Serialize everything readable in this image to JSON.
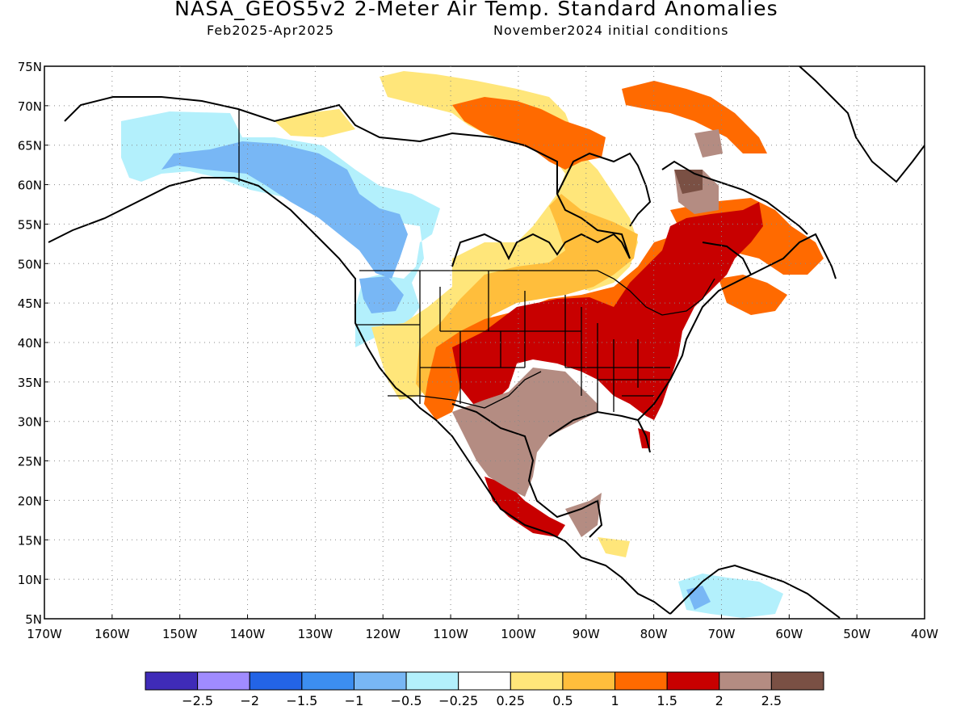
{
  "title": "NASA_GEOS5v2 2-Meter Air Temp. Standard Anomalies",
  "subtitle_left": "Feb2025-Apr2025",
  "subtitle_right": "November2024 initial conditions",
  "map": {
    "lon_range": [
      -170,
      -40
    ],
    "lat_range": [
      5,
      75
    ],
    "lat_ticks": [
      "75N",
      "70N",
      "65N",
      "60N",
      "55N",
      "50N",
      "45N",
      "40N",
      "35N",
      "30N",
      "25N",
      "20N",
      "15N",
      "10N",
      "5N"
    ],
    "lon_ticks": [
      "170W",
      "160W",
      "150W",
      "140W",
      "130W",
      "120W",
      "110W",
      "100W",
      "90W",
      "80W",
      "70W",
      "60W",
      "50W",
      "40W"
    ],
    "gridlines": "dotted"
  },
  "colorbar": {
    "colors": [
      "#3f2bb8",
      "#a08bff",
      "#2364e6",
      "#3c8ef0",
      "#78b7f5",
      "#b3f0fc",
      "#ffffff",
      "#ffe67a",
      "#ffbe3c",
      "#ff6a00",
      "#c80000",
      "#b48c82",
      "#7a5044"
    ],
    "labels": [
      "-2.5",
      "-2",
      "-1.5",
      "-1",
      "-0.5",
      "-0.25",
      "0.25",
      "0.5",
      "1",
      "1.5",
      "2",
      "2.5"
    ]
  },
  "regions": [
    {
      "name": "alaska-cold-anomaly",
      "color": "#b3f0fc"
    },
    {
      "name": "western-canada-cold-anomaly",
      "color": "#78b7f5"
    },
    {
      "name": "eastern-us-warm-anomaly",
      "color": "#c80000"
    },
    {
      "name": "mexico-warm-anomaly",
      "color": "#b48c82"
    },
    {
      "name": "hudson-bay-warm-anomaly",
      "color": "#ffbe3c"
    },
    {
      "name": "arctic-warm-anomaly",
      "color": "#ff6a00"
    }
  ]
}
